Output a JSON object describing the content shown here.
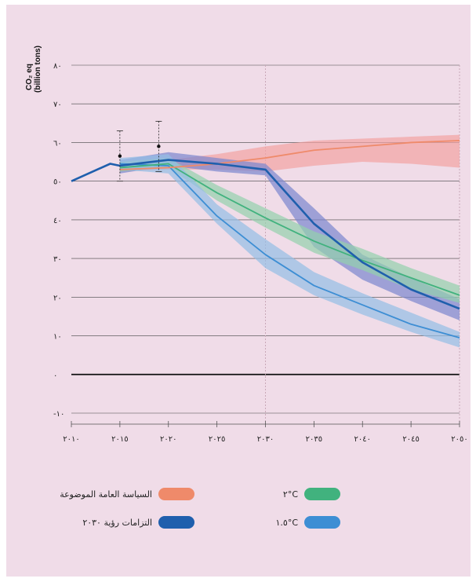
{
  "chart_data": {
    "type": "line",
    "ylabel_line1": "CO₂ eq",
    "ylabel_line2": "(billion tons)",
    "x_ticks": [
      2010,
      2015,
      2020,
      2025,
      2030,
      2035,
      2040,
      2045,
      2050
    ],
    "x_tick_labels": [
      "٢٠١٠",
      "٢٠١٥",
      "٢٠٢٠",
      "٢٠٢٥",
      "٢٠٣٠",
      "٢٠٣٥",
      "٢٠٤٠",
      "٢٠٤٥",
      "٢٠٥٠"
    ],
    "y_ticks": [
      -10,
      0,
      10,
      20,
      30,
      40,
      50,
      60,
      70,
      80
    ],
    "y_tick_labels": [
      "-١٠",
      "٠",
      "١٠",
      "٢٠",
      "٣٠",
      "٤٠",
      "٥٠",
      "٦٠",
      "٧٠",
      "٨٠"
    ],
    "xlim": [
      2010,
      2050
    ],
    "ylim": [
      -10,
      80
    ],
    "grid": "horizontal",
    "dashed_vlines": [
      2030,
      2050
    ],
    "history": {
      "x": [
        2010,
        2014,
        2015
      ],
      "y": [
        50,
        54.5,
        54
      ]
    },
    "markers": [
      {
        "x": 2015,
        "y": 56.5,
        "low": 50,
        "high": 63
      },
      {
        "x": 2019,
        "y": 59,
        "low": 52.5,
        "high": 65.5
      }
    ],
    "series": [
      {
        "name": "السياسة العامة الموضوعة",
        "color": "#ef8a6a",
        "band_color": "#f2a3a3",
        "x": [
          2015,
          2020,
          2025,
          2030,
          2035,
          2040,
          2045,
          2050
        ],
        "y": [
          53,
          53.5,
          54.5,
          56,
          58,
          59,
          60,
          60.5
        ],
        "low": [
          52.5,
          53,
          53,
          52.5,
          54,
          55,
          54.5,
          53.5
        ],
        "high": [
          54.5,
          55.5,
          57,
          59,
          60.5,
          61,
          61.5,
          62
        ]
      },
      {
        "name": "التزامات رؤية ٢٠٣٠",
        "color": "#1f5fad",
        "band_color": "#7b86cf",
        "x": [
          2015,
          2020,
          2025,
          2030,
          2035,
          2040,
          2045,
          2050
        ],
        "y": [
          54,
          55.5,
          54.5,
          53,
          39,
          29,
          22,
          17
        ],
        "low": [
          52,
          54,
          52.5,
          51.5,
          33,
          24.5,
          19,
          14
        ],
        "high": [
          55.5,
          57.5,
          56,
          54.5,
          43,
          31,
          25,
          19.5
        ]
      },
      {
        "name": "٢°C",
        "color": "#41b27e",
        "band_color": "#93d0ad",
        "x": [
          2015,
          2020,
          2025,
          2030,
          2035,
          2040,
          2045,
          2050
        ],
        "y": [
          53.5,
          54.5,
          47,
          40.5,
          34.5,
          29.5,
          25,
          20.5
        ],
        "low": [
          52.5,
          53.5,
          45,
          38,
          31.5,
          27,
          22,
          18.5
        ],
        "high": [
          55,
          56,
          49,
          43,
          37,
          32.5,
          27.5,
          23
        ]
      },
      {
        "name": "١.٥°C",
        "color": "#3d8ed4",
        "band_color": "#93bde6",
        "x": [
          2015,
          2020,
          2025,
          2030,
          2035,
          2040,
          2045,
          2050
        ],
        "y": [
          54.5,
          54,
          41,
          31,
          23,
          18,
          13,
          9.5
        ],
        "low": [
          53,
          52,
          39,
          27.5,
          20.5,
          15.5,
          11,
          7
        ],
        "high": [
          56,
          57,
          44,
          35,
          26.5,
          21,
          16,
          11
        ]
      }
    ],
    "legend_placement": "bottom"
  },
  "legend": [
    {
      "label": "السياسة العامة الموضوعة",
      "color": "#ef8a6a"
    },
    {
      "label": "٢°C",
      "color": "#41b27e"
    },
    {
      "label": "التزامات رؤية ٢٠٣٠",
      "color": "#1f5fad"
    },
    {
      "label": "١.٥°C",
      "color": "#3d8ed4"
    }
  ]
}
